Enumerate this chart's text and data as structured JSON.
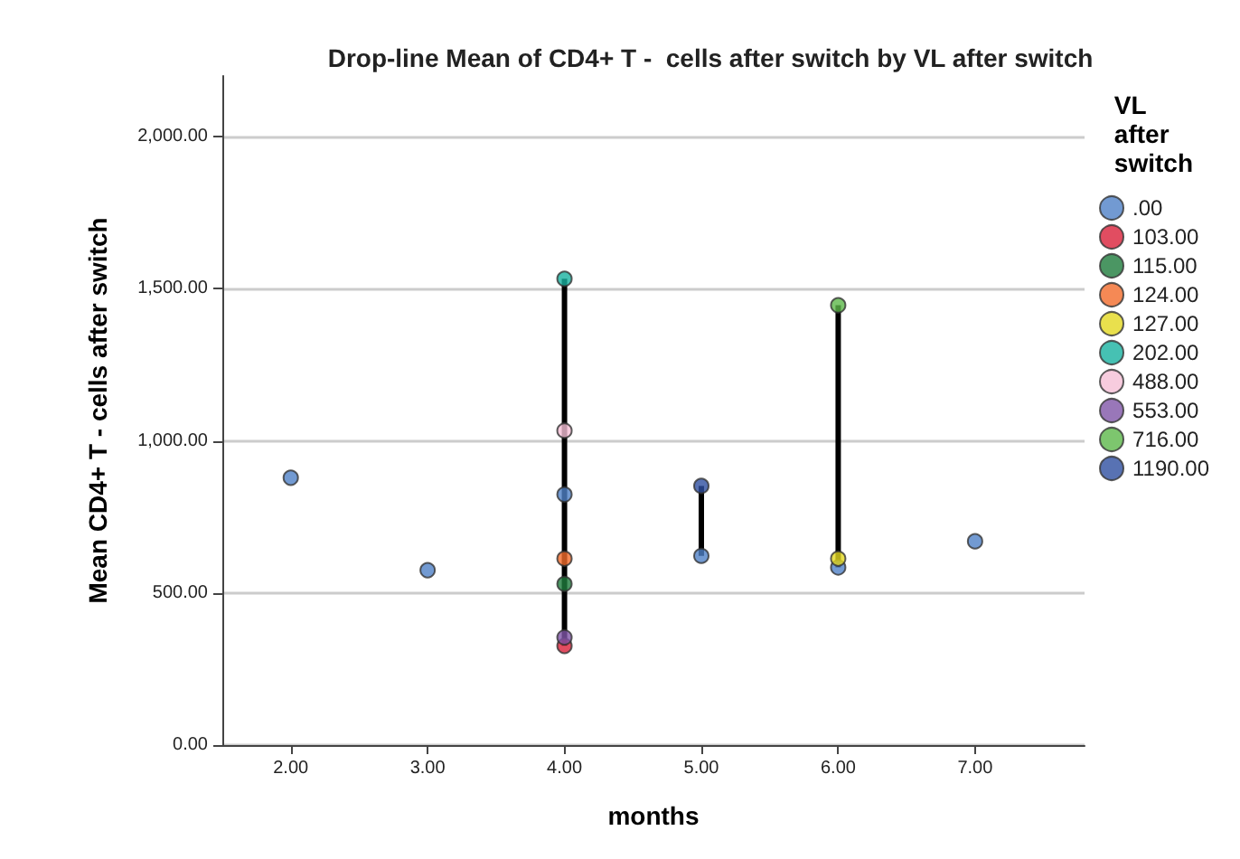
{
  "chart_data": {
    "type": "scatter",
    "title": "Drop-line Mean of CD4+ T -  cells after switch by VL after switch",
    "xlabel": "months",
    "ylabel": "Mean CD4+ T - cells after switch",
    "legend_title": "VL after switch",
    "legend": "right",
    "grid": "y",
    "marker": "circle",
    "xlim": [
      1.5,
      7.8
    ],
    "ylim": [
      0,
      2200
    ],
    "xticks": [
      {
        "value": 2,
        "label": "2.00"
      },
      {
        "value": 3,
        "label": "3.00"
      },
      {
        "value": 4,
        "label": "4.00"
      },
      {
        "value": 5,
        "label": "5.00"
      },
      {
        "value": 6,
        "label": "6.00"
      },
      {
        "value": 7,
        "label": "7.00"
      }
    ],
    "yticks": [
      {
        "value": 0,
        "label": "0.00"
      },
      {
        "value": 500,
        "label": "500.00"
      },
      {
        "value": 1000,
        "label": "1,000.00"
      },
      {
        "value": 1500,
        "label": "1,500.00"
      },
      {
        "value": 2000,
        "label": "2,000.00"
      }
    ],
    "series": [
      {
        "type": "line",
        "color": "#000000",
        "marker": "none",
        "x": [
          4,
          4
        ],
        "values": [
          326,
          1533
        ]
      },
      {
        "type": "line",
        "color": "#000000",
        "marker": "none",
        "x": [
          5,
          5
        ],
        "values": [
          622,
          852
        ]
      },
      {
        "type": "line",
        "color": "#000000",
        "marker": "none",
        "x": [
          6,
          6
        ],
        "values": [
          584,
          1446
        ]
      },
      {
        "name": ".00",
        "color": "#4f81c7",
        "x": [
          2,
          3,
          4,
          5,
          6,
          7
        ],
        "values": [
          879,
          575,
          824,
          622,
          584,
          670
        ]
      },
      {
        "name": "103.00",
        "color": "#d9213a",
        "x": [
          4
        ],
        "values": [
          326
        ]
      },
      {
        "name": "115.00",
        "color": "#1e7c3c",
        "x": [
          4
        ],
        "values": [
          530
        ]
      },
      {
        "name": "124.00",
        "color": "#f26b2a",
        "x": [
          4
        ],
        "values": [
          613
        ]
      },
      {
        "name": "127.00",
        "color": "#e3d820",
        "x": [
          6
        ],
        "values": [
          613
        ]
      },
      {
        "name": "202.00",
        "color": "#18b2a0",
        "x": [
          4
        ],
        "values": [
          1533
        ]
      },
      {
        "name": "488.00",
        "color": "#f5bfd6",
        "x": [
          4
        ],
        "values": [
          1034
        ]
      },
      {
        "name": "553.00",
        "color": "#8055a8",
        "x": [
          4
        ],
        "values": [
          354
        ]
      },
      {
        "name": "716.00",
        "color": "#5cb84a",
        "x": [
          6
        ],
        "values": [
          1446
        ]
      },
      {
        "name": "1190.00",
        "color": "#2e4fa0",
        "x": [
          5
        ],
        "values": [
          852
        ]
      }
    ]
  }
}
